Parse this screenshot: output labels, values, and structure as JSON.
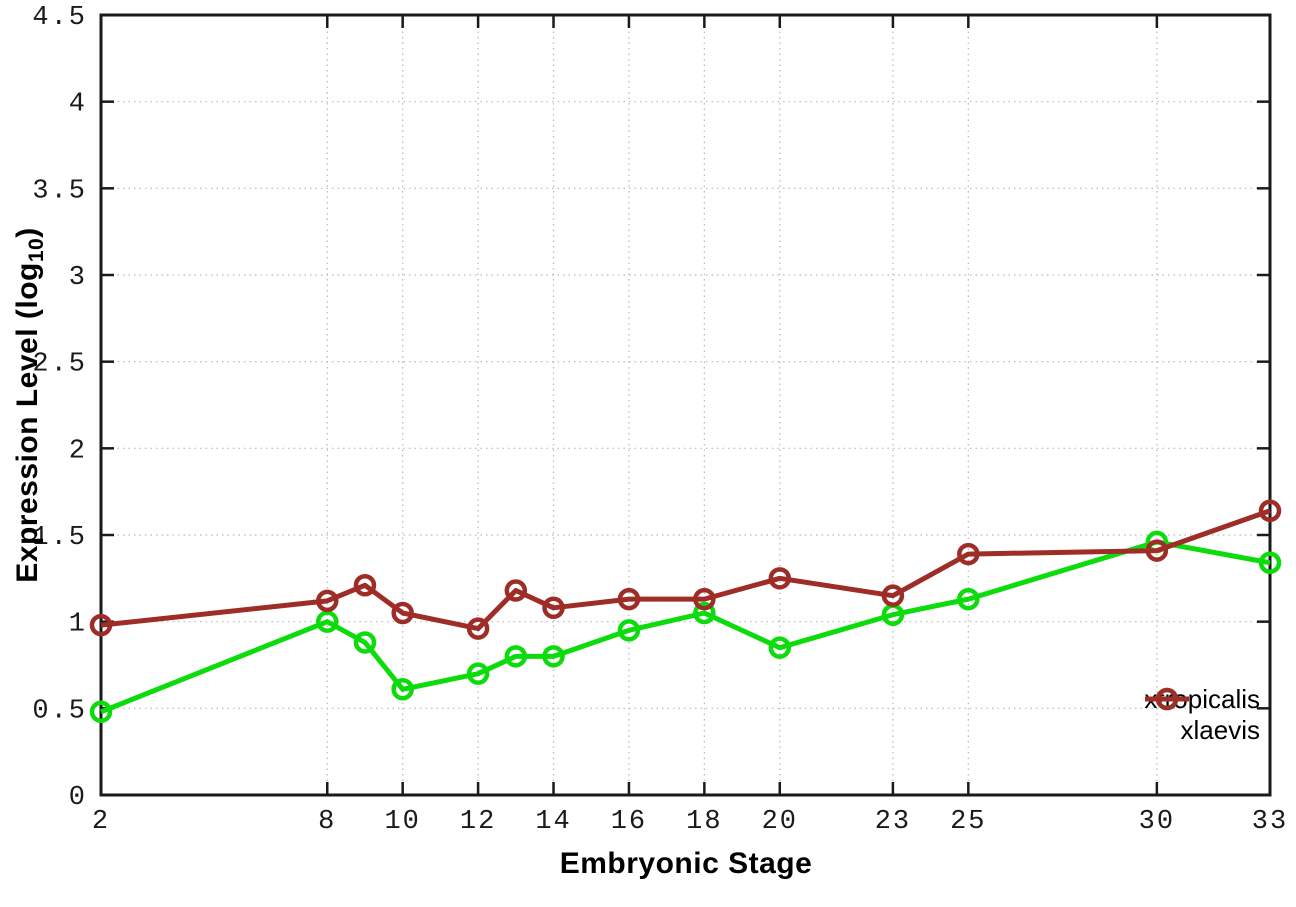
{
  "chart_data": {
    "type": "line",
    "x": [
      2,
      8,
      9,
      10,
      12,
      13,
      14,
      16,
      18,
      20,
      23,
      25,
      30,
      33
    ],
    "series": [
      {
        "name": "xtropicalis",
        "color": "#0cdb0c",
        "values": [
          0.48,
          1.0,
          0.88,
          0.61,
          0.7,
          0.8,
          0.8,
          0.95,
          1.05,
          0.85,
          1.04,
          1.13,
          1.46,
          1.34
        ]
      },
      {
        "name": "xlaevis",
        "color": "#9e2d28",
        "values": [
          0.98,
          1.12,
          1.21,
          1.05,
          0.96,
          1.18,
          1.08,
          1.13,
          1.13,
          1.25,
          1.15,
          1.39,
          1.41,
          1.64
        ]
      }
    ],
    "xlabel": "Embryonic Stage",
    "ylabel": "Expression Level (log10)",
    "ylabel_parts": {
      "prefix": "Expression Level (log",
      "sub": "10",
      "suffix": ")"
    },
    "xlim": [
      2,
      33
    ],
    "ylim": [
      0,
      4.5
    ],
    "x_ticks": [
      2,
      8,
      10,
      12,
      14,
      16,
      18,
      20,
      23,
      25,
      30,
      33
    ],
    "y_ticks": [
      0,
      0.5,
      1,
      1.5,
      2,
      2.5,
      3,
      3.5,
      4,
      4.5
    ],
    "grid": true,
    "legend_position": "bottom-right",
    "axis_color": "#1a1a1a",
    "grid_color": "#b8b8b8",
    "background": "#ffffff"
  }
}
